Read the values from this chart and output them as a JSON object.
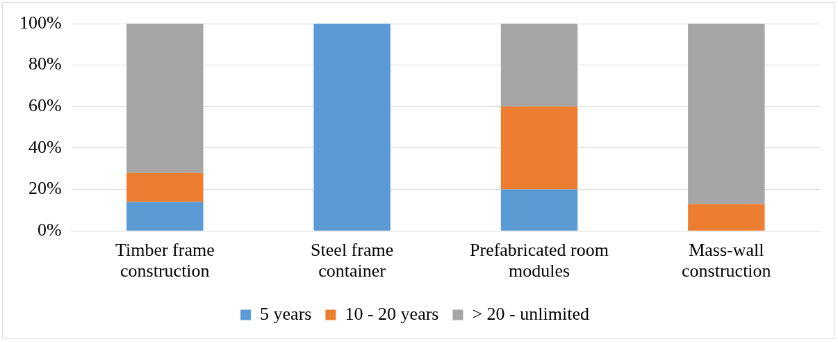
{
  "chart_data": {
    "type": "bar",
    "stacked": true,
    "categories": [
      "Timber frame construction",
      "Steel frame container",
      "Prefabricated room modules",
      "Mass-wall construction"
    ],
    "series": [
      {
        "name": "5 years",
        "color": "#5b9bd5",
        "values": [
          14,
          100,
          20,
          0
        ]
      },
      {
        "name": "10 - 20 years",
        "color": "#ed7d31",
        "values": [
          14,
          0,
          40,
          13
        ]
      },
      {
        "name": "> 20 - unlimited",
        "color": "#a5a5a5",
        "values": [
          72,
          0,
          40,
          87
        ]
      }
    ],
    "ylim": [
      0,
      100
    ],
    "yticks": [
      {
        "value": 0,
        "label": "0%"
      },
      {
        "value": 20,
        "label": "20%"
      },
      {
        "value": 40,
        "label": "40%"
      },
      {
        "value": 60,
        "label": "60%"
      },
      {
        "value": 80,
        "label": "80%"
      },
      {
        "value": 100,
        "label": "100%"
      }
    ],
    "grid": "y",
    "legend": "bottom"
  }
}
